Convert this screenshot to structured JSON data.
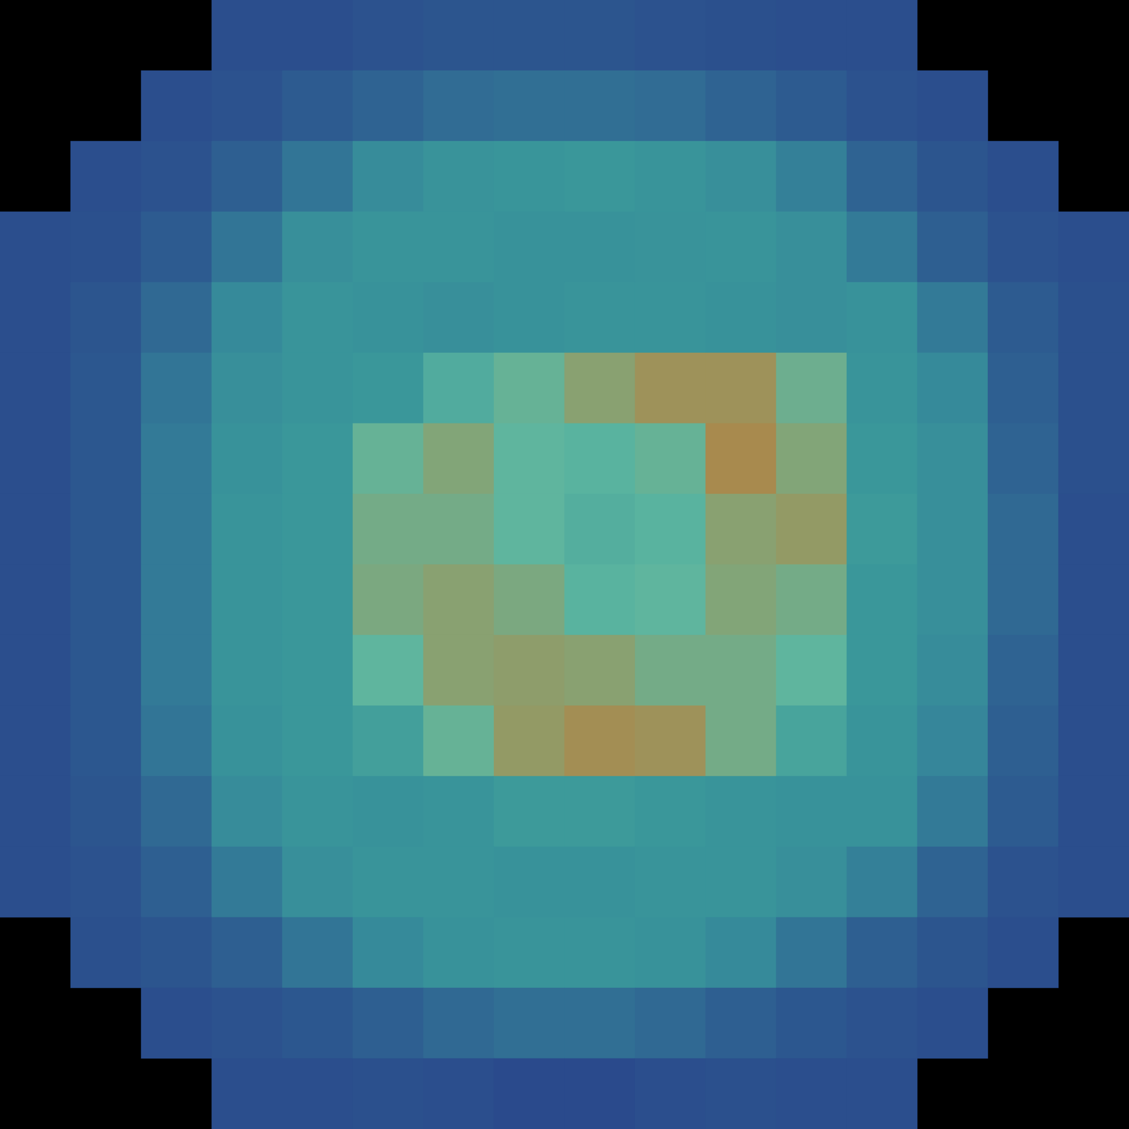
{
  "chart_data": {
    "type": "heatmap",
    "tick_labels": false,
    "grid": false,
    "cells": [
      [
        null,
        null,
        null,
        12,
        12,
        14,
        15,
        15,
        15,
        14,
        13,
        12,
        12,
        null,
        null,
        null
      ],
      [
        null,
        null,
        12,
        14,
        18,
        22,
        25,
        26,
        26,
        25,
        22,
        18,
        14,
        12,
        null,
        null
      ],
      [
        null,
        12,
        14,
        20,
        28,
        38,
        43,
        45,
        46,
        44,
        40,
        32,
        22,
        15,
        12,
        null
      ],
      [
        12,
        13,
        18,
        28,
        40,
        44,
        44,
        42,
        42,
        43,
        44,
        40,
        30,
        20,
        14,
        12
      ],
      [
        12,
        15,
        24,
        36,
        44,
        42,
        40,
        42,
        44,
        44,
        42,
        40,
        42,
        30,
        18,
        13
      ],
      [
        12,
        16,
        28,
        40,
        44,
        46,
        55,
        62,
        72,
        80,
        80,
        64,
        44,
        36,
        20,
        13
      ],
      [
        12,
        16,
        30,
        42,
        46,
        62,
        70,
        60,
        58,
        62,
        84,
        70,
        46,
        40,
        22,
        13
      ],
      [
        12,
        16,
        30,
        44,
        46,
        66,
        66,
        60,
        56,
        58,
        72,
        76,
        48,
        40,
        24,
        12
      ],
      [
        12,
        16,
        30,
        44,
        46,
        68,
        72,
        68,
        58,
        60,
        70,
        66,
        46,
        40,
        24,
        12
      ],
      [
        12,
        16,
        30,
        44,
        46,
        60,
        72,
        74,
        72,
        66,
        66,
        60,
        46,
        38,
        22,
        12
      ],
      [
        12,
        16,
        28,
        42,
        46,
        50,
        62,
        76,
        82,
        80,
        66,
        52,
        44,
        34,
        20,
        12
      ],
      [
        12,
        15,
        24,
        38,
        44,
        42,
        44,
        48,
        48,
        46,
        44,
        42,
        42,
        30,
        18,
        12
      ],
      [
        12,
        14,
        20,
        30,
        40,
        44,
        44,
        42,
        42,
        44,
        44,
        40,
        32,
        22,
        14,
        12
      ],
      [
        null,
        13,
        15,
        20,
        28,
        36,
        42,
        44,
        44,
        42,
        36,
        28,
        20,
        15,
        12,
        null
      ],
      [
        null,
        null,
        12,
        14,
        16,
        20,
        24,
        26,
        26,
        24,
        20,
        16,
        14,
        12,
        null,
        null
      ],
      [
        null,
        null,
        null,
        12,
        12,
        13,
        12,
        10,
        10,
        12,
        13,
        12,
        12,
        null,
        null,
        null
      ]
    ]
  }
}
